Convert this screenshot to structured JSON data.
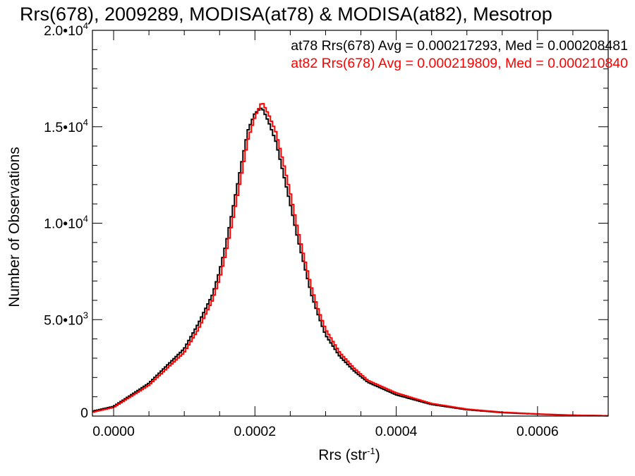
{
  "chart_data": {
    "type": "line",
    "title": "Rrs(678), 2009289, MODISA(at78) & MODISA(at82), Mesotrop",
    "xlabel_main": "Rrs (str",
    "xlabel_sup": "-1",
    "xlabel_close": ")",
    "ylabel": "Number of Observations",
    "xlim": [
      -3e-05,
      0.0007
    ],
    "ylim": [
      0,
      20000
    ],
    "x_ticks": [
      {
        "value": 0.0,
        "label": "0.0000"
      },
      {
        "value": 0.0002,
        "label": "0.0002"
      },
      {
        "value": 0.0004,
        "label": "0.0004"
      },
      {
        "value": 0.0006,
        "label": "0.0006"
      }
    ],
    "y_ticks": [
      {
        "value": 0,
        "mant": "0",
        "exp": ""
      },
      {
        "value": 5000,
        "mant": "5.0•10",
        "exp": "3"
      },
      {
        "value": 10000,
        "mant": "1.0•10",
        "exp": "4"
      },
      {
        "value": 15000,
        "mant": "1.5•10",
        "exp": "4"
      },
      {
        "value": 20000,
        "mant": "2.0•10",
        "exp": "4"
      }
    ],
    "legend": [
      {
        "text": "at78 Rrs(678) Avg = 0.000217293, Med = 0.000208481",
        "color": "#000000"
      },
      {
        "text": "at82 Rrs(678) Avg = 0.000219809, Med = 0.000210840",
        "color": "#ff0000"
      }
    ],
    "legend_position": "top-right",
    "series": [
      {
        "color": "#000000",
        "x": [
          -3e-05,
          0.0,
          5e-05,
          0.0001,
          0.00012,
          0.00014,
          0.00015,
          0.00016,
          0.00017,
          0.00018,
          0.00019,
          0.0002,
          0.00021,
          0.00022,
          0.00023,
          0.00024,
          0.00025,
          0.00026,
          0.00027,
          0.00028,
          0.00029,
          0.0003,
          0.00032,
          0.00034,
          0.00036,
          0.0004,
          0.00045,
          0.0005,
          0.00055,
          0.0006,
          0.00065,
          0.0007
        ],
        "y": [
          250,
          500,
          1700,
          3500,
          4800,
          6300,
          7500,
          9100,
          11000,
          12900,
          14800,
          15700,
          16000,
          15200,
          14200,
          12600,
          11000,
          9300,
          7800,
          6300,
          5200,
          4200,
          3100,
          2350,
          1750,
          1100,
          600,
          330,
          180,
          100,
          40,
          15
        ]
      },
      {
        "color": "#ff0000",
        "x": [
          -3e-05,
          0.0,
          5e-05,
          0.0001,
          0.00012,
          0.00014,
          0.00015,
          0.00016,
          0.00017,
          0.00018,
          0.00019,
          0.0002,
          0.00021,
          0.00022,
          0.00023,
          0.00024,
          0.00025,
          0.00026,
          0.00027,
          0.00028,
          0.00029,
          0.0003,
          0.00032,
          0.00034,
          0.00036,
          0.0004,
          0.00045,
          0.0005,
          0.00055,
          0.0006,
          0.00065,
          0.0007
        ],
        "y": [
          200,
          450,
          1600,
          3300,
          4500,
          6000,
          7100,
          8600,
          10400,
          12300,
          14300,
          15500,
          16300,
          15600,
          14700,
          13200,
          11600,
          9800,
          8200,
          6700,
          5500,
          4500,
          3300,
          2500,
          1850,
          1200,
          650,
          360,
          200,
          110,
          45,
          15
        ]
      }
    ]
  }
}
